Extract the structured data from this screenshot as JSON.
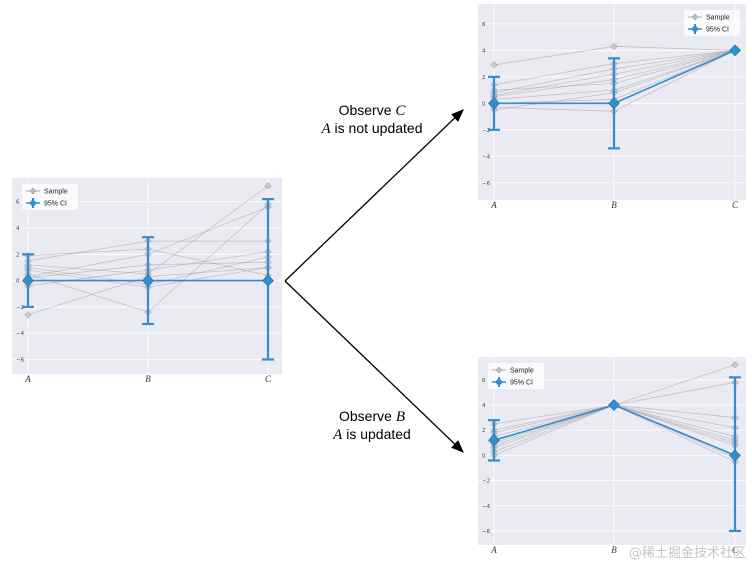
{
  "charts": [
    {
      "id": "prior",
      "legend": {
        "sample_label": "Sample",
        "ci_label": "95% CI"
      },
      "categories": [
        "A",
        "B",
        "C"
      ],
      "y_ticks": [
        "−6",
        "−4",
        "−2",
        "0",
        "2",
        "4",
        "6"
      ],
      "ylim": [
        -6.8,
        7.5
      ],
      "mean": [
        0,
        0,
        0
      ],
      "ci": [
        [
          -2,
          2
        ],
        [
          -3.3,
          3.3
        ],
        [
          -6,
          6.2
        ]
      ],
      "samples": [
        [
          -2.6,
          0.3,
          1.0
        ],
        [
          1.2,
          0.5,
          7.2
        ],
        [
          0.5,
          -2.4,
          5.8
        ],
        [
          1.5,
          3.0,
          3.0
        ],
        [
          0.2,
          1.2,
          1.4
        ],
        [
          -0.4,
          0.8,
          2.2
        ],
        [
          0.8,
          -0.5,
          1.0
        ],
        [
          1.9,
          2.4,
          0.4
        ],
        [
          0.3,
          2.0,
          5.6
        ],
        [
          1.0,
          -0.3,
          1.8
        ]
      ]
    },
    {
      "id": "observe-c",
      "legend": {
        "sample_label": "Sample",
        "ci_label": "95% CI"
      },
      "categories": [
        "A",
        "B",
        "C"
      ],
      "y_ticks": [
        "−6",
        "−4",
        "−2",
        "0",
        "2",
        "4",
        "6"
      ],
      "ylim": [
        -7,
        7.2
      ],
      "mean": [
        0,
        0,
        4
      ],
      "ci": [
        [
          -2,
          2
        ],
        [
          -3.4,
          3.4
        ],
        [
          4,
          4
        ]
      ],
      "samples": [
        [
          2.9,
          4.3,
          4.0
        ],
        [
          1.4,
          3.0,
          4.0
        ],
        [
          0.8,
          2.6,
          4.0
        ],
        [
          0.5,
          1.8,
          4.0
        ],
        [
          0.3,
          1.0,
          4.0
        ],
        [
          0.0,
          0.3,
          4.0
        ],
        [
          -0.3,
          -0.6,
          4.0
        ],
        [
          -0.5,
          0.8,
          4.0
        ],
        [
          1.0,
          1.5,
          4.0
        ],
        [
          0.6,
          2.2,
          4.0
        ]
      ]
    },
    {
      "id": "observe-b",
      "legend": {
        "sample_label": "Sample",
        "ci_label": "95% CI"
      },
      "categories": [
        "A",
        "B",
        "C"
      ],
      "y_ticks": [
        "−6",
        "−4",
        "−2",
        "0",
        "2",
        "4",
        "6"
      ],
      "ylim": [
        -6.8,
        7.5
      ],
      "mean": [
        1.2,
        4,
        0
      ],
      "ci": [
        [
          -0.4,
          2.8
        ],
        [
          4,
          4
        ],
        [
          -6,
          6.2
        ]
      ],
      "samples": [
        [
          2.5,
          4.0,
          7.2
        ],
        [
          2.0,
          4.0,
          5.8
        ],
        [
          1.5,
          4.0,
          3.0
        ],
        [
          1.2,
          4.0,
          2.2
        ],
        [
          1.0,
          4.0,
          1.2
        ],
        [
          0.6,
          4.0,
          0.8
        ],
        [
          0.3,
          4.0,
          -0.2
        ],
        [
          0.0,
          4.0,
          -0.5
        ],
        [
          0.8,
          4.0,
          1.5
        ],
        [
          1.8,
          4.0,
          1.0
        ]
      ]
    }
  ],
  "captions": {
    "top": {
      "line1": "Observe",
      "line1_var": "C",
      "line2_var": "A",
      "line2": "is not updated"
    },
    "bottom": {
      "line1": "Observe",
      "line1_var": "B",
      "line2_var": "A",
      "line2": "is updated"
    }
  },
  "watermark": "@稀土掘金技术社区",
  "colors": {
    "ci_blue": "#2f8fd0",
    "sample_gray": "#999999",
    "plot_bg": "#eaeaf2",
    "grid": "#ffffff",
    "arrow": "#000000"
  },
  "icons": {
    "marker": "diamond",
    "arrow": "arrow-icon"
  }
}
